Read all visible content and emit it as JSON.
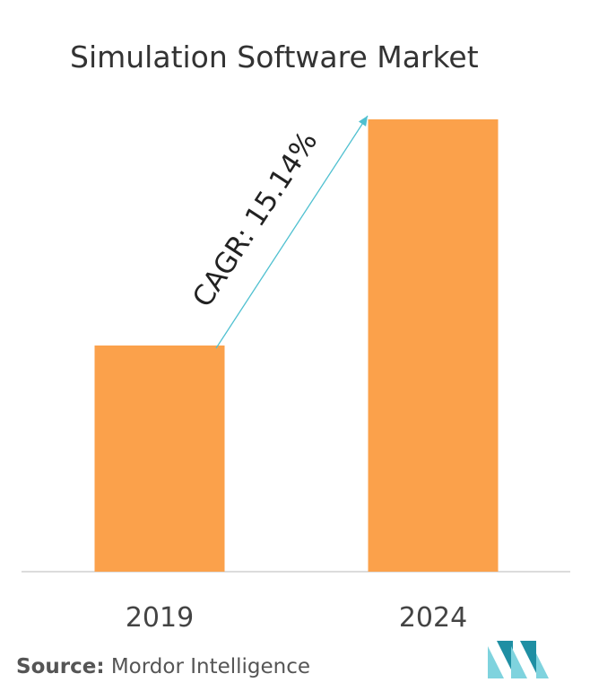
{
  "title": "Simulation Software Market",
  "source": {
    "label": "Source:",
    "text": "Mordor Intelligence"
  },
  "colors": {
    "bar": "#FBA14B",
    "arrow": "#4FC0D0",
    "axis": "#D0D0D0",
    "text": "#333333",
    "logo_light": "#7FD3DE",
    "logo_dark": "#1F8FA3"
  },
  "logo_icon": "mordor-intelligence-logo-icon",
  "chart_data": {
    "type": "bar",
    "categories": [
      "2019",
      "2024"
    ],
    "values": [
      50,
      100
    ],
    "ylim": [
      0,
      100
    ],
    "grid": false,
    "annotation": "CAGR: 15.14%"
  }
}
